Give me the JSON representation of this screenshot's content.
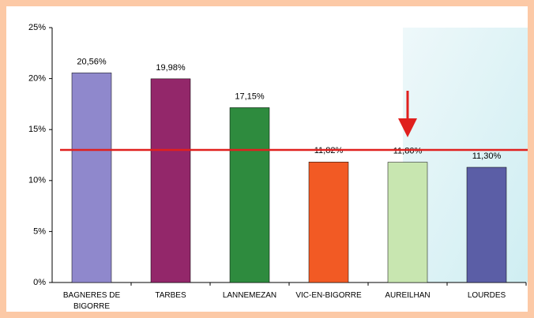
{
  "chart_data": {
    "type": "bar",
    "categories": [
      "BAGNERES DE BIGORRE",
      "TARBES",
      "LANNEMEZAN",
      "VIC-EN-BIGORRE",
      "AUREILHAN",
      "LOURDES"
    ],
    "values": [
      20.56,
      19.98,
      17.15,
      11.82,
      11.8,
      11.3
    ],
    "value_labels": [
      "20,56%",
      "19,98%",
      "17,15%",
      "11,82%",
      "11,80%",
      "11,30%"
    ],
    "colors": [
      "#8f88cc",
      "#93276a",
      "#2e8b3e",
      "#f25a24",
      "#c8e6b0",
      "#5b5ea6"
    ],
    "ylim": [
      0,
      25
    ],
    "yticks": [
      {
        "value": 0,
        "label": "0%"
      },
      {
        "value": 5,
        "label": "5%"
      },
      {
        "value": 10,
        "label": "10%"
      },
      {
        "value": 15,
        "label": "15%"
      },
      {
        "value": 20,
        "label": "20%"
      },
      {
        "value": 25,
        "label": "25%"
      }
    ],
    "reference_line": {
      "value": 13,
      "color": "#e0201e"
    }
  }
}
